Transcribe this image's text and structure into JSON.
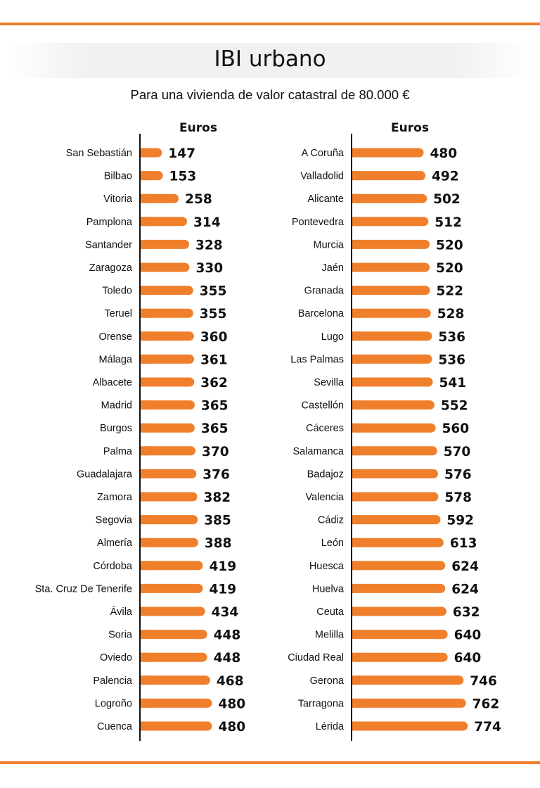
{
  "title": "IBI urbano",
  "subtitle": "Para una vivienda de valor catastral de 80.000 €",
  "accent_color": "#f07f2c",
  "axis_color": "#111111",
  "chart_data": [
    {
      "type": "bar",
      "orientation": "horizontal",
      "unit_label": "Euros",
      "categories": [
        "San Sebastián",
        "Bilbao",
        "Vitoria",
        "Pamplona",
        "Santander",
        "Zaragoza",
        "Toledo",
        "Teruel",
        "Orense",
        "Málaga",
        "Albacete",
        "Madrid",
        "Burgos",
        "Palma",
        "Guadalajara",
        "Zamora",
        "Segovia",
        "Almería",
        "Córdoba",
        "Sta. Cruz De Tenerife",
        "Ávila",
        "Soria",
        "Oviedo",
        "Palencia",
        "Logroño",
        "Cuenca"
      ],
      "values": [
        147,
        153,
        258,
        314,
        328,
        330,
        355,
        355,
        360,
        361,
        362,
        365,
        365,
        370,
        376,
        382,
        385,
        388,
        419,
        419,
        434,
        448,
        448,
        468,
        480,
        480
      ]
    },
    {
      "type": "bar",
      "orientation": "horizontal",
      "unit_label": "Euros",
      "categories": [
        "A Coruña",
        "Valladolid",
        "Alicante",
        "Pontevedra",
        "Murcia",
        "Jaén",
        "Granada",
        "Barcelona",
        "Lugo",
        "Las Palmas",
        "Sevilla",
        "Castellón",
        "Cáceres",
        "Salamanca",
        "Badajoz",
        "Valencia",
        "Cádiz",
        "León",
        "Huesca",
        "Huelva",
        "Ceuta",
        "Melilla",
        "Ciudad Real",
        "Gerona",
        "Tarragona",
        "Lérida"
      ],
      "values": [
        480,
        492,
        502,
        512,
        520,
        520,
        522,
        528,
        536,
        536,
        541,
        552,
        560,
        570,
        576,
        578,
        592,
        613,
        624,
        624,
        632,
        640,
        640,
        746,
        762,
        774
      ]
    }
  ]
}
